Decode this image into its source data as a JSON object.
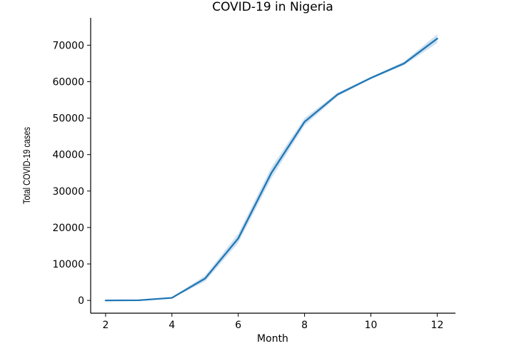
{
  "chart_data": {
    "type": "line",
    "title": "COVID-19 in Nigeria",
    "xlabel": "Month",
    "ylabel": "Total COVID-19 cases",
    "xlim": [
      1.55,
      12.55
    ],
    "ylim": [
      -3500,
      77500
    ],
    "x_ticks": [
      2,
      4,
      6,
      8,
      10,
      12
    ],
    "y_ticks": [
      0,
      10000,
      20000,
      30000,
      40000,
      50000,
      60000,
      70000
    ],
    "grid": false,
    "legend": "none",
    "series": [
      {
        "x": [
          2,
          3,
          4,
          5,
          6,
          7,
          8,
          9,
          10,
          11,
          12
        ],
        "values": [
          0,
          50,
          700,
          6000,
          17000,
          35000,
          49000,
          56500,
          61000,
          65000,
          71800
        ],
        "ci_lower": [
          0,
          0,
          550,
          5200,
          15800,
          33500,
          48000,
          56000,
          60700,
          64500,
          70600
        ],
        "ci_upper": [
          0,
          100,
          850,
          6800,
          18300,
          36500,
          50000,
          57000,
          61300,
          65500,
          73000
        ],
        "color": "#1f77b4",
        "band_color": "#c6dbef"
      }
    ]
  }
}
